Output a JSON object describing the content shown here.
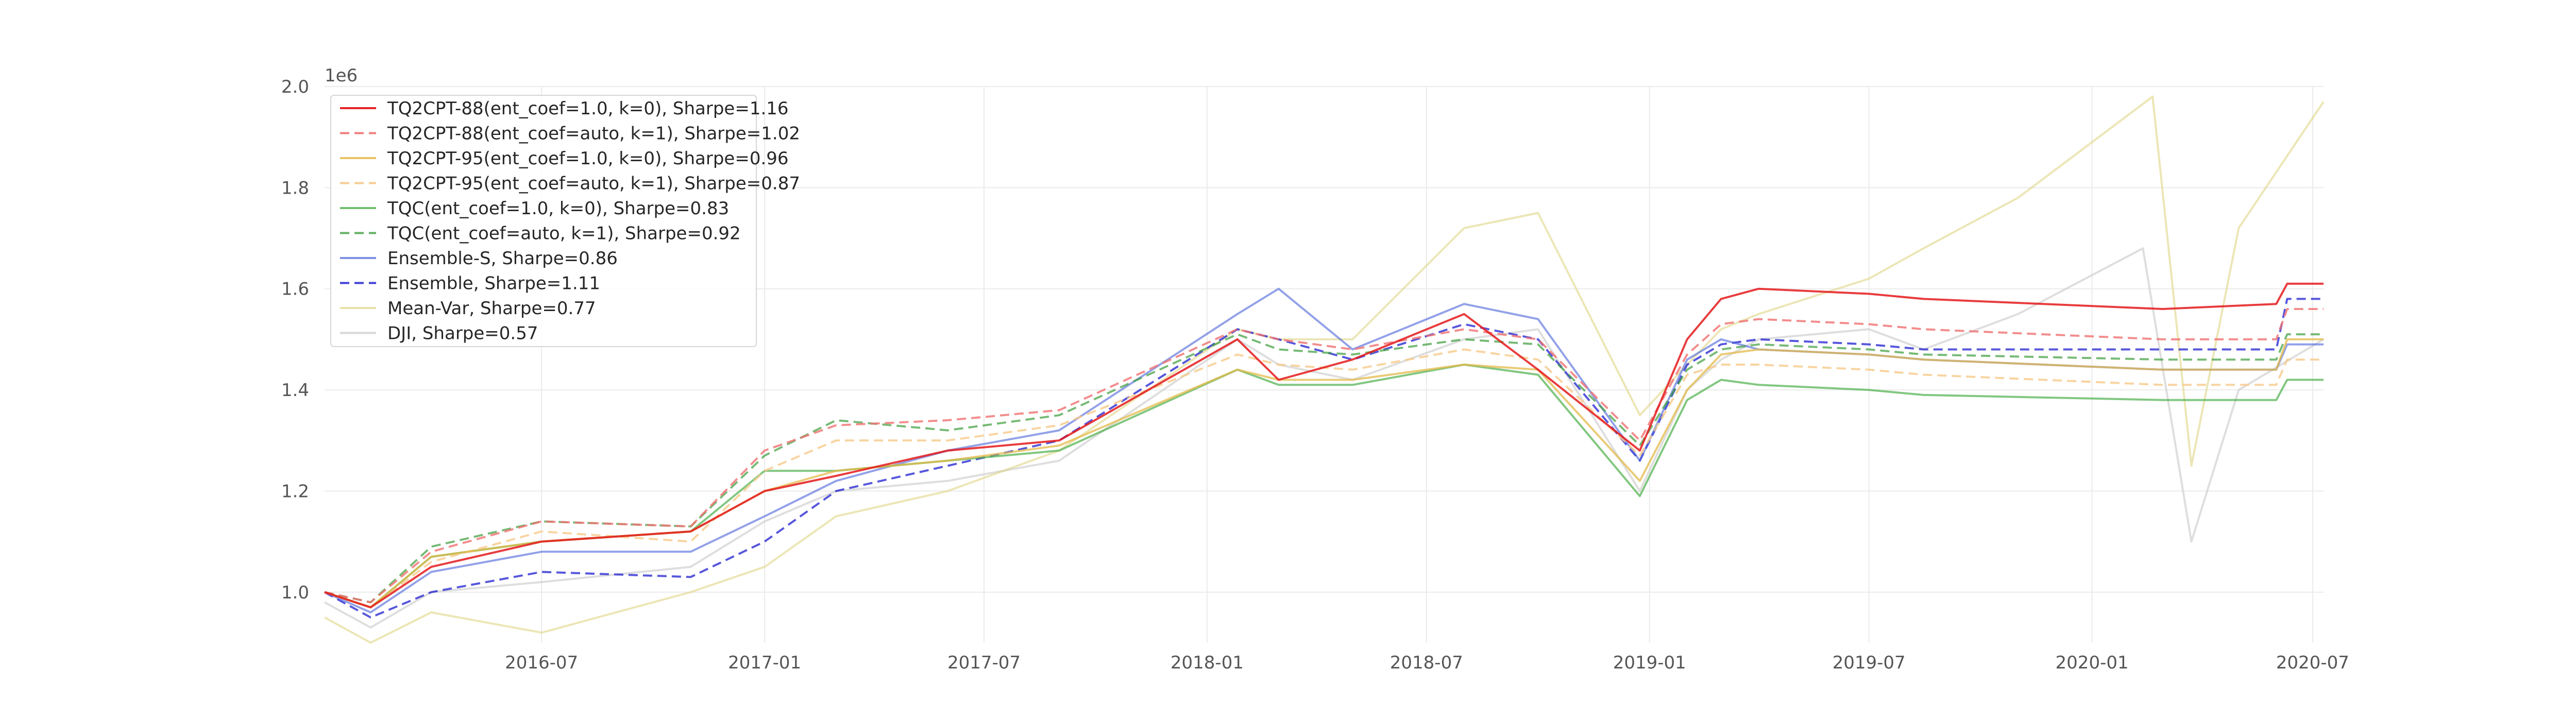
{
  "chart_data": {
    "type": "line",
    "title": "",
    "xlabel": "",
    "ylabel": "",
    "y_scale_label": "1e6",
    "xlim": [
      "2016-01-04",
      "2020-07-10"
    ],
    "ylim": [
      0.9,
      2.0
    ],
    "x_ticks": [
      "2016-07",
      "2017-01",
      "2017-07",
      "2018-01",
      "2018-07",
      "2019-01",
      "2019-07",
      "2020-01",
      "2020-07"
    ],
    "y_ticks": [
      "1.0",
      "1.2",
      "1.4",
      "1.6",
      "1.8",
      "2.0"
    ],
    "grid": true,
    "legend_position": "top-left",
    "series": [
      {
        "name": "TQ2CPT-88(ent_coef=1.0, k=0), Sharpe=1.16",
        "color": "#e41a1c",
        "dash": "solid",
        "opacity": 0.85,
        "x": [
          "2016-01-04",
          "2016-02-11",
          "2016-04-01",
          "2016-07-01",
          "2016-11-01",
          "2017-01-01",
          "2017-03-01",
          "2017-06-01",
          "2017-09-01",
          "2018-01-26",
          "2018-03-01",
          "2018-05-01",
          "2018-08-01",
          "2018-10-01",
          "2018-12-24",
          "2019-02-01",
          "2019-03-01",
          "2019-04-01",
          "2019-07-01",
          "2019-08-15",
          "2020-02-28",
          "2020-06-01",
          "2020-06-10",
          "2020-07-10"
        ],
        "y": [
          1.0,
          0.97,
          1.05,
          1.1,
          1.12,
          1.2,
          1.23,
          1.28,
          1.3,
          1.5,
          1.42,
          1.46,
          1.55,
          1.44,
          1.28,
          1.5,
          1.58,
          1.6,
          1.59,
          1.58,
          1.56,
          1.57,
          1.61,
          1.61
        ]
      },
      {
        "name": "TQ2CPT-88(ent_coef=auto, k=1), Sharpe=1.02",
        "color": "#f07070",
        "dash": "dashed",
        "opacity": 0.8,
        "x": [
          "2016-01-04",
          "2016-02-11",
          "2016-04-01",
          "2016-07-01",
          "2016-11-01",
          "2017-01-01",
          "2017-03-01",
          "2017-06-01",
          "2017-09-01",
          "2018-01-26",
          "2018-03-01",
          "2018-05-01",
          "2018-08-01",
          "2018-10-01",
          "2018-12-24",
          "2019-02-01",
          "2019-03-01",
          "2019-04-01",
          "2019-07-01",
          "2019-08-15",
          "2020-02-28",
          "2020-06-01",
          "2020-06-10",
          "2020-07-10"
        ],
        "y": [
          1.0,
          0.98,
          1.08,
          1.14,
          1.13,
          1.28,
          1.33,
          1.34,
          1.36,
          1.52,
          1.5,
          1.48,
          1.52,
          1.5,
          1.3,
          1.47,
          1.53,
          1.54,
          1.53,
          1.52,
          1.5,
          1.5,
          1.56,
          1.56
        ]
      },
      {
        "name": "TQ2CPT-95(ent_coef=1.0, k=0), Sharpe=0.96",
        "color": "#e3b94a",
        "dash": "solid",
        "opacity": 0.75,
        "x": [
          "2016-01-04",
          "2016-02-11",
          "2016-04-01",
          "2016-07-01",
          "2016-11-01",
          "2017-01-01",
          "2017-03-01",
          "2017-06-01",
          "2017-09-01",
          "2018-01-26",
          "2018-03-01",
          "2018-05-01",
          "2018-08-01",
          "2018-10-01",
          "2018-12-24",
          "2019-02-01",
          "2019-03-01",
          "2019-04-01",
          "2019-07-01",
          "2019-08-15",
          "2020-02-28",
          "2020-06-01",
          "2020-06-10",
          "2020-07-10"
        ],
        "y": [
          1.0,
          0.97,
          1.07,
          1.1,
          1.12,
          1.2,
          1.24,
          1.26,
          1.29,
          1.44,
          1.42,
          1.42,
          1.45,
          1.44,
          1.22,
          1.4,
          1.47,
          1.48,
          1.47,
          1.46,
          1.44,
          1.44,
          1.5,
          1.5
        ]
      },
      {
        "name": "TQ2CPT-95(ent_coef=auto, k=1), Sharpe=0.87",
        "color": "#f6c98a",
        "dash": "dashed",
        "opacity": 0.8,
        "x": [
          "2016-01-04",
          "2016-02-11",
          "2016-04-01",
          "2016-07-01",
          "2016-11-01",
          "2017-01-01",
          "2017-03-01",
          "2017-06-01",
          "2017-09-01",
          "2018-01-26",
          "2018-03-01",
          "2018-05-01",
          "2018-08-01",
          "2018-10-01",
          "2018-12-24",
          "2019-02-01",
          "2019-03-01",
          "2019-04-01",
          "2019-07-01",
          "2019-08-15",
          "2020-02-28",
          "2020-06-01",
          "2020-06-10",
          "2020-07-10"
        ],
        "y": [
          1.0,
          0.97,
          1.06,
          1.12,
          1.1,
          1.24,
          1.3,
          1.3,
          1.33,
          1.47,
          1.45,
          1.44,
          1.48,
          1.46,
          1.27,
          1.43,
          1.45,
          1.45,
          1.44,
          1.43,
          1.41,
          1.41,
          1.46,
          1.46
        ]
      },
      {
        "name": "TQC(ent_coef=1.0, k=0), Sharpe=0.83",
        "color": "#4daf4a",
        "dash": "solid",
        "opacity": 0.7,
        "x": [
          "2016-01-04",
          "2016-02-11",
          "2016-04-01",
          "2016-07-01",
          "2016-11-01",
          "2017-01-01",
          "2017-03-01",
          "2017-06-01",
          "2017-09-01",
          "2018-01-26",
          "2018-03-01",
          "2018-05-01",
          "2018-08-01",
          "2018-10-01",
          "2018-12-24",
          "2019-02-01",
          "2019-03-01",
          "2019-04-01",
          "2019-07-01",
          "2019-08-15",
          "2020-02-28",
          "2020-06-01",
          "2020-06-10",
          "2020-07-10"
        ],
        "y": [
          1.0,
          0.97,
          1.07,
          1.1,
          1.12,
          1.24,
          1.24,
          1.26,
          1.28,
          1.44,
          1.41,
          1.41,
          1.45,
          1.43,
          1.19,
          1.38,
          1.42,
          1.41,
          1.4,
          1.39,
          1.38,
          1.38,
          1.42,
          1.42
        ]
      },
      {
        "name": "TQC(ent_coef=auto, k=1), Sharpe=0.92",
        "color": "#3c9c3c",
        "dash": "dashed",
        "opacity": 0.7,
        "x": [
          "2016-01-04",
          "2016-02-11",
          "2016-04-01",
          "2016-07-01",
          "2016-11-01",
          "2017-01-01",
          "2017-03-01",
          "2017-06-01",
          "2017-09-01",
          "2018-01-26",
          "2018-03-01",
          "2018-05-01",
          "2018-08-01",
          "2018-10-01",
          "2018-12-24",
          "2019-02-01",
          "2019-03-01",
          "2019-04-01",
          "2019-07-01",
          "2019-08-15",
          "2020-02-28",
          "2020-06-01",
          "2020-06-10",
          "2020-07-10"
        ],
        "y": [
          1.0,
          0.98,
          1.09,
          1.14,
          1.13,
          1.27,
          1.34,
          1.32,
          1.35,
          1.51,
          1.48,
          1.47,
          1.5,
          1.49,
          1.29,
          1.44,
          1.48,
          1.49,
          1.48,
          1.47,
          1.46,
          1.46,
          1.51,
          1.51
        ]
      },
      {
        "name": "Ensemble-S, Sharpe=0.86",
        "color": "#4a63d8",
        "dash": "solid",
        "opacity": 0.6,
        "x": [
          "2016-01-04",
          "2016-02-11",
          "2016-04-01",
          "2016-07-01",
          "2016-11-01",
          "2017-01-01",
          "2017-03-01",
          "2017-06-01",
          "2017-09-01",
          "2018-01-26",
          "2018-03-01",
          "2018-05-01",
          "2018-08-01",
          "2018-10-01",
          "2018-12-24",
          "2019-02-01",
          "2019-03-01",
          "2019-04-01",
          "2019-07-01",
          "2019-08-15",
          "2020-02-28",
          "2020-06-01",
          "2020-06-10",
          "2020-07-10"
        ],
        "y": [
          1.0,
          0.96,
          1.04,
          1.08,
          1.08,
          1.15,
          1.22,
          1.28,
          1.32,
          1.55,
          1.6,
          1.48,
          1.57,
          1.54,
          1.26,
          1.46,
          1.5,
          1.48,
          1.47,
          1.46,
          1.44,
          1.44,
          1.49,
          1.49
        ]
      },
      {
        "name": "Ensemble, Sharpe=1.11",
        "color": "#1f1fd0",
        "dash": "dashed",
        "opacity": 0.75,
        "x": [
          "2016-01-04",
          "2016-02-11",
          "2016-04-01",
          "2016-07-01",
          "2016-11-01",
          "2017-01-01",
          "2017-03-01",
          "2017-06-01",
          "2017-09-01",
          "2018-01-26",
          "2018-03-01",
          "2018-05-01",
          "2018-08-01",
          "2018-10-01",
          "2018-12-24",
          "2019-02-01",
          "2019-03-01",
          "2019-04-01",
          "2019-07-01",
          "2019-08-15",
          "2020-02-28",
          "2020-06-01",
          "2020-06-10",
          "2020-07-10"
        ],
        "y": [
          1.0,
          0.95,
          1.0,
          1.04,
          1.03,
          1.1,
          1.2,
          1.25,
          1.3,
          1.52,
          1.5,
          1.46,
          1.53,
          1.5,
          1.26,
          1.45,
          1.49,
          1.5,
          1.49,
          1.48,
          1.48,
          1.48,
          1.58,
          1.58
        ]
      },
      {
        "name": "Mean-Var, Sharpe=0.77",
        "color": "#dcd27a",
        "dash": "solid",
        "opacity": 0.55,
        "x": [
          "2016-01-04",
          "2016-02-11",
          "2016-04-01",
          "2016-07-01",
          "2016-11-01",
          "2017-01-01",
          "2017-03-01",
          "2017-06-01",
          "2017-09-01",
          "2018-01-26",
          "2018-03-01",
          "2018-05-01",
          "2018-08-01",
          "2018-10-01",
          "2018-12-24",
          "2019-02-01",
          "2019-03-01",
          "2019-04-01",
          "2019-07-01",
          "2019-08-15",
          "2019-11-01",
          "2020-02-20",
          "2020-03-23",
          "2020-05-01",
          "2020-07-10"
        ],
        "y": [
          0.95,
          0.9,
          0.96,
          0.92,
          1.0,
          1.05,
          1.15,
          1.2,
          1.28,
          1.52,
          1.5,
          1.5,
          1.72,
          1.75,
          1.35,
          1.45,
          1.52,
          1.55,
          1.62,
          1.68,
          1.78,
          1.98,
          1.25,
          1.72,
          1.97
        ]
      },
      {
        "name": "DJI, Sharpe=0.57",
        "color": "#c8c8c8",
        "dash": "solid",
        "opacity": 0.6,
        "x": [
          "2016-01-04",
          "2016-02-11",
          "2016-04-01",
          "2016-07-01",
          "2016-11-01",
          "2017-01-01",
          "2017-03-01",
          "2017-06-01",
          "2017-09-01",
          "2018-01-26",
          "2018-03-01",
          "2018-05-01",
          "2018-08-01",
          "2018-10-01",
          "2018-12-24",
          "2019-02-01",
          "2019-03-01",
          "2019-04-01",
          "2019-07-01",
          "2019-08-15",
          "2019-11-01",
          "2020-02-12",
          "2020-03-23",
          "2020-05-01",
          "2020-07-10"
        ],
        "y": [
          0.98,
          0.93,
          1.0,
          1.02,
          1.05,
          1.14,
          1.2,
          1.22,
          1.26,
          1.5,
          1.45,
          1.42,
          1.5,
          1.52,
          1.2,
          1.4,
          1.46,
          1.5,
          1.52,
          1.48,
          1.55,
          1.68,
          1.1,
          1.4,
          1.5
        ]
      }
    ]
  }
}
